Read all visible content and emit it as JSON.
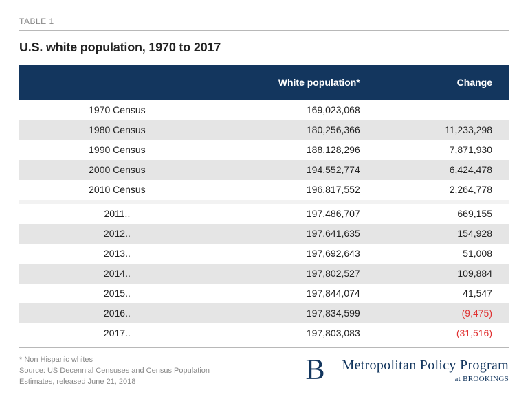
{
  "label": "TABLE 1",
  "title": "U.S. white population, 1970 to 2017",
  "columns": [
    "",
    "White population*",
    "Change"
  ],
  "rows": [
    {
      "year": "1970 Census",
      "pop": "169,023,068",
      "change": "",
      "shade": false
    },
    {
      "year": "1980 Census",
      "pop": "180,256,366",
      "change": "11,233,298",
      "shade": true
    },
    {
      "year": "1990 Census",
      "pop": "188,128,296",
      "change": "7,871,930",
      "shade": false
    },
    {
      "year": "2000 Census",
      "pop": "194,552,774",
      "change": "6,424,478",
      "shade": true
    },
    {
      "year": "2010 Census",
      "pop": "196,817,552",
      "change": "2,264,778",
      "shade": false
    }
  ],
  "rows2": [
    {
      "year": "2011..",
      "pop": "197,486,707",
      "change": "669,155",
      "neg": false,
      "shade": false
    },
    {
      "year": "2012..",
      "pop": "197,641,635",
      "change": "154,928",
      "neg": false,
      "shade": true
    },
    {
      "year": "2013..",
      "pop": "197,692,643",
      "change": "51,008",
      "neg": false,
      "shade": false
    },
    {
      "year": "2014..",
      "pop": "197,802,527",
      "change": "109,884",
      "neg": false,
      "shade": true
    },
    {
      "year": "2015..",
      "pop": "197,844,074",
      "change": "41,547",
      "neg": false,
      "shade": false
    },
    {
      "year": "2016..",
      "pop": "197,834,599",
      "change": "(9,475)",
      "neg": true,
      "shade": true
    },
    {
      "year": "2017..",
      "pop": "197,803,083",
      "change": "(31,516)",
      "neg": true,
      "shade": false
    }
  ],
  "footnote1": "* Non Hispanic whites",
  "footnote2": "Source: US Decennial Censuses and Census Population Estimates, released June 21, 2018",
  "brand": {
    "b": "B",
    "main": "Metropolitan Policy Program",
    "sub": "at BROOKINGS"
  },
  "style": {
    "header_bg": "#13365e",
    "header_fg": "#ffffff",
    "row_shade": "#e5e5e5",
    "row_white": "#ffffff",
    "gap_bg": "#f2f2f2",
    "neg_color": "#e03131",
    "muted": "#888888",
    "col_widths": [
      "40%",
      "33%",
      "27%"
    ]
  }
}
